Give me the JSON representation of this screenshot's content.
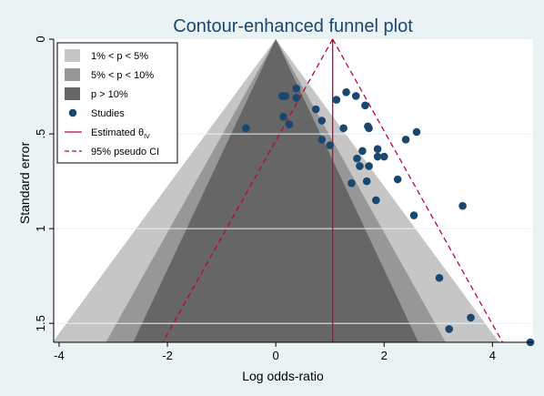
{
  "chart_data": {
    "type": "scatter",
    "title": "Contour-enhanced funnel plot",
    "xlabel": "Log odds-ratio",
    "ylabel": "Standard error",
    "xlim": [
      -4.1,
      4.75
    ],
    "ylim": [
      0,
      1.6
    ],
    "y_reversed": true,
    "x_ticks": [
      -4,
      -2,
      0,
      2,
      4
    ],
    "x_tick_labels": [
      "-4",
      "-2",
      "0",
      "2",
      "4"
    ],
    "y_ticks": [
      0,
      0.5,
      1,
      1.5
    ],
    "y_tick_labels": [
      "0",
      ".5",
      "1",
      "1.5"
    ],
    "grid": "horizontal",
    "legend_position": "top-left",
    "estimated_theta": 1.05,
    "contours": [
      {
        "label": "1% < p < 5%",
        "z": 2.576,
        "color": "#c6c6c6"
      },
      {
        "label": "5% < p < 10%",
        "z": 1.96,
        "color": "#979797"
      },
      {
        "label": "p > 10%",
        "z": 1.645,
        "color": "#666666"
      }
    ],
    "legend": [
      {
        "label": "1% < p < 5%",
        "kind": "swatch",
        "color": "#c6c6c6"
      },
      {
        "label": "5% < p < 10%",
        "kind": "swatch",
        "color": "#979797"
      },
      {
        "label": "p > 10%",
        "kind": "swatch",
        "color": "#666666"
      },
      {
        "label": "Studies",
        "kind": "marker",
        "color": "#1a476f"
      },
      {
        "label": "Estimated θ",
        "sub": "IV",
        "kind": "solid-line",
        "color": "#c10534"
      },
      {
        "label": "95% pseudo CI",
        "kind": "dashed-line",
        "color": "#c10534"
      }
    ],
    "series": [
      {
        "name": "Studies",
        "color": "#1a476f",
        "points": [
          {
            "x": 0.38,
            "y": 0.26
          },
          {
            "x": 1.3,
            "y": 0.28
          },
          {
            "x": 1.48,
            "y": 0.3
          },
          {
            "x": 0.12,
            "y": 0.3
          },
          {
            "x": 0.18,
            "y": 0.3
          },
          {
            "x": 0.38,
            "y": 0.31
          },
          {
            "x": 1.12,
            "y": 0.32
          },
          {
            "x": 1.65,
            "y": 0.35
          },
          {
            "x": 0.74,
            "y": 0.37
          },
          {
            "x": 0.14,
            "y": 0.41
          },
          {
            "x": 0.85,
            "y": 0.43
          },
          {
            "x": 0.25,
            "y": 0.45
          },
          {
            "x": -0.55,
            "y": 0.47
          },
          {
            "x": 1.25,
            "y": 0.47
          },
          {
            "x": 1.7,
            "y": 0.46
          },
          {
            "x": 1.72,
            "y": 0.47
          },
          {
            "x": 2.6,
            "y": 0.49
          },
          {
            "x": 0.85,
            "y": 0.53
          },
          {
            "x": 2.4,
            "y": 0.53
          },
          {
            "x": 1.0,
            "y": 0.56
          },
          {
            "x": 1.88,
            "y": 0.58
          },
          {
            "x": 1.6,
            "y": 0.59
          },
          {
            "x": 1.88,
            "y": 0.62
          },
          {
            "x": 2.0,
            "y": 0.62
          },
          {
            "x": 1.5,
            "y": 0.63
          },
          {
            "x": 1.55,
            "y": 0.67
          },
          {
            "x": 1.72,
            "y": 0.67
          },
          {
            "x": 2.25,
            "y": 0.74
          },
          {
            "x": 1.68,
            "y": 0.75
          },
          {
            "x": 1.4,
            "y": 0.76
          },
          {
            "x": 1.85,
            "y": 0.85
          },
          {
            "x": 3.45,
            "y": 0.88
          },
          {
            "x": 2.55,
            "y": 0.93
          },
          {
            "x": 3.02,
            "y": 1.26
          },
          {
            "x": 3.6,
            "y": 1.47
          },
          {
            "x": 3.2,
            "y": 1.53
          },
          {
            "x": 4.7,
            "y": 1.6
          }
        ]
      }
    ]
  }
}
